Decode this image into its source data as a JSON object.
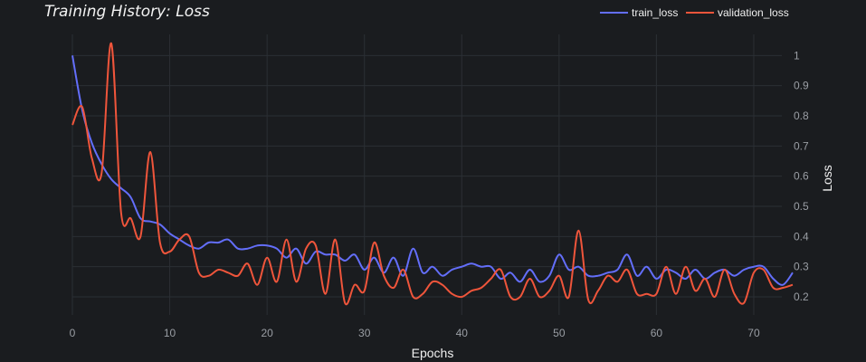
{
  "chart_data": {
    "type": "line",
    "title": "Training History: Loss",
    "xlabel": "Epochs",
    "ylabel": "Loss",
    "xlim": [
      0,
      74
    ],
    "ylim": [
      0.14,
      1.07
    ],
    "x_ticks": [
      0,
      10,
      20,
      30,
      40,
      50,
      60,
      70
    ],
    "y_ticks": [
      0.2,
      0.3,
      0.4,
      0.5,
      0.6,
      0.7,
      0.8,
      0.9,
      1
    ],
    "x_tick_labels": [
      "0",
      "10",
      "20",
      "30",
      "40",
      "50",
      "60",
      "70"
    ],
    "y_tick_labels": [
      "0.2",
      "0.3",
      "0.4",
      "0.5",
      "0.6",
      "0.7",
      "0.8",
      "0.9",
      "1"
    ],
    "grid": true,
    "legend_position": "top-right",
    "y_axis_side": "right",
    "background": "#1a1c1f",
    "series": [
      {
        "name": "train_loss",
        "color": "#636efa",
        "x": [
          0,
          1,
          2,
          3,
          4,
          5,
          6,
          7,
          8,
          9,
          10,
          11,
          12,
          13,
          14,
          15,
          16,
          17,
          18,
          19,
          20,
          21,
          22,
          23,
          24,
          25,
          26,
          27,
          28,
          29,
          30,
          31,
          32,
          33,
          34,
          35,
          36,
          37,
          38,
          39,
          40,
          41,
          42,
          43,
          44,
          45,
          46,
          47,
          48,
          49,
          50,
          51,
          52,
          53,
          54,
          55,
          56,
          57,
          58,
          59,
          60,
          61,
          62,
          63,
          64,
          65,
          66,
          67,
          68,
          69,
          70,
          71,
          72,
          73,
          74
        ],
        "values": [
          1.0,
          0.82,
          0.71,
          0.64,
          0.59,
          0.56,
          0.53,
          0.46,
          0.45,
          0.44,
          0.41,
          0.39,
          0.37,
          0.36,
          0.38,
          0.38,
          0.39,
          0.36,
          0.36,
          0.37,
          0.37,
          0.36,
          0.33,
          0.36,
          0.31,
          0.35,
          0.34,
          0.34,
          0.32,
          0.34,
          0.29,
          0.33,
          0.28,
          0.33,
          0.27,
          0.36,
          0.28,
          0.3,
          0.27,
          0.29,
          0.3,
          0.31,
          0.3,
          0.3,
          0.26,
          0.28,
          0.25,
          0.29,
          0.25,
          0.27,
          0.34,
          0.29,
          0.3,
          0.27,
          0.27,
          0.28,
          0.29,
          0.34,
          0.27,
          0.3,
          0.26,
          0.29,
          0.28,
          0.26,
          0.29,
          0.26,
          0.28,
          0.29,
          0.27,
          0.29,
          0.3,
          0.3,
          0.26,
          0.24,
          0.28
        ]
      },
      {
        "name": "validation_loss",
        "color": "#ef553b",
        "x": [
          0,
          1,
          2,
          3,
          4,
          5,
          6,
          7,
          8,
          9,
          10,
          11,
          12,
          13,
          14,
          15,
          16,
          17,
          18,
          19,
          20,
          21,
          22,
          23,
          24,
          25,
          26,
          27,
          28,
          29,
          30,
          31,
          32,
          33,
          34,
          35,
          36,
          37,
          38,
          39,
          40,
          41,
          42,
          43,
          44,
          45,
          46,
          47,
          48,
          49,
          50,
          51,
          52,
          53,
          54,
          55,
          56,
          57,
          58,
          59,
          60,
          61,
          62,
          63,
          64,
          65,
          66,
          67,
          68,
          69,
          70,
          71,
          72,
          73,
          74
        ],
        "values": [
          0.77,
          0.83,
          0.66,
          0.61,
          1.04,
          0.48,
          0.46,
          0.4,
          0.68,
          0.38,
          0.35,
          0.39,
          0.4,
          0.28,
          0.27,
          0.29,
          0.28,
          0.27,
          0.31,
          0.24,
          0.33,
          0.25,
          0.39,
          0.25,
          0.36,
          0.37,
          0.21,
          0.39,
          0.18,
          0.24,
          0.22,
          0.38,
          0.27,
          0.23,
          0.29,
          0.2,
          0.21,
          0.25,
          0.24,
          0.21,
          0.2,
          0.22,
          0.23,
          0.26,
          0.29,
          0.2,
          0.2,
          0.26,
          0.2,
          0.22,
          0.27,
          0.2,
          0.42,
          0.19,
          0.22,
          0.27,
          0.25,
          0.29,
          0.21,
          0.21,
          0.21,
          0.3,
          0.21,
          0.3,
          0.22,
          0.26,
          0.2,
          0.29,
          0.21,
          0.18,
          0.28,
          0.29,
          0.23,
          0.23,
          0.24
        ]
      }
    ]
  }
}
